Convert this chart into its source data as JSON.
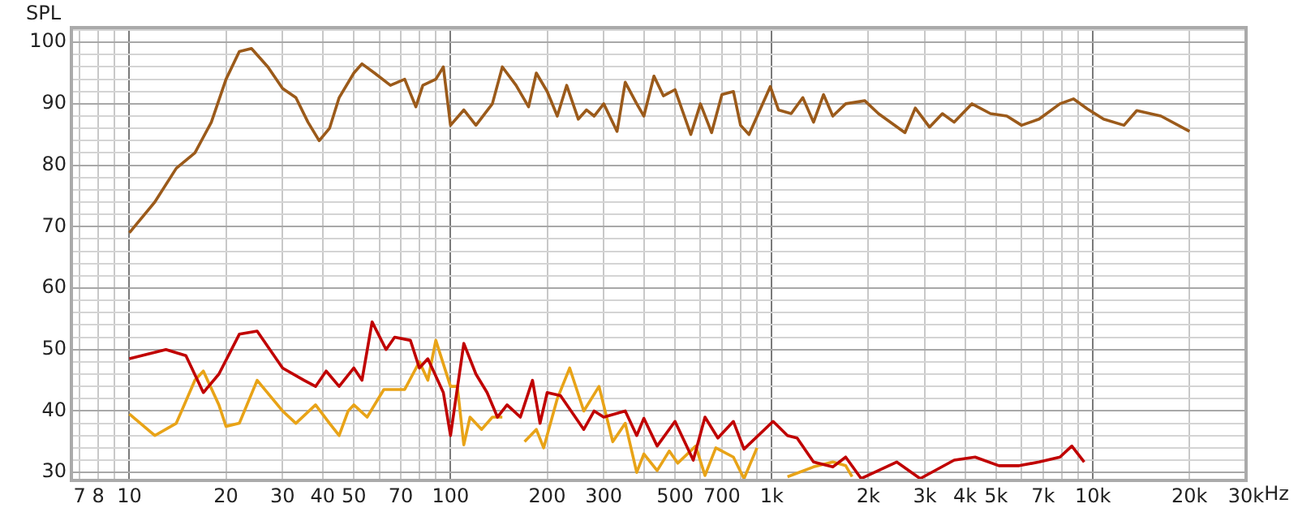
{
  "chart_data": {
    "type": "line",
    "ylabel": "SPL",
    "log": "x",
    "grid": true,
    "legend": false,
    "marker": "none",
    "line_style": "solid",
    "xlim": [
      6.6,
      30000
    ],
    "ylim": [
      28.7,
      102.4
    ],
    "xticks": [
      7,
      8,
      {
        "value": 9,
        "label": null
      },
      10,
      20,
      30,
      40,
      50,
      {
        "value": 60,
        "label": null
      },
      70,
      {
        "value": 80,
        "label": null
      },
      {
        "value": 90,
        "label": null
      },
      100,
      200,
      300,
      {
        "value": 400,
        "label": null
      },
      500,
      {
        "value": 600,
        "label": null
      },
      700,
      {
        "value": 800,
        "label": null
      },
      {
        "value": 900,
        "label": null
      },
      {
        "value": 1000,
        "label": "1k"
      },
      {
        "value": 2000,
        "label": "2k"
      },
      {
        "value": 3000,
        "label": "3k"
      },
      {
        "value": 4000,
        "label": "4k"
      },
      {
        "value": 5000,
        "label": "5k"
      },
      {
        "value": 6000,
        "label": null
      },
      {
        "value": 7000,
        "label": "7k"
      },
      {
        "value": 8000,
        "label": null
      },
      {
        "value": 9000,
        "label": null
      },
      {
        "value": 10000,
        "label": "10k"
      },
      {
        "value": 20000,
        "label": "20k"
      },
      {
        "value": 30000,
        "label": "30k"
      }
    ],
    "xlabel": "Hz",
    "yticks": [
      30,
      {
        "value": 32,
        "label": null
      },
      {
        "value": 34,
        "label": null
      },
      {
        "value": 36,
        "label": null
      },
      {
        "value": 38,
        "label": null
      },
      40,
      {
        "value": 42,
        "label": null
      },
      {
        "value": 44,
        "label": null
      },
      {
        "value": 46,
        "label": null
      },
      {
        "value": 48,
        "label": null
      },
      50,
      {
        "value": 52,
        "label": null
      },
      {
        "value": 54,
        "label": null
      },
      {
        "value": 56,
        "label": null
      },
      {
        "value": 58,
        "label": null
      },
      60,
      {
        "value": 62,
        "label": null
      },
      {
        "value": 64,
        "label": null
      },
      {
        "value": 66,
        "label": null
      },
      {
        "value": 68,
        "label": null
      },
      70,
      {
        "value": 72,
        "label": null
      },
      {
        "value": 74,
        "label": null
      },
      {
        "value": 76,
        "label": null
      },
      {
        "value": 78,
        "label": null
      },
      80,
      {
        "value": 82,
        "label": null
      },
      {
        "value": 84,
        "label": null
      },
      {
        "value": 86,
        "label": null
      },
      {
        "value": 88,
        "label": null
      },
      90,
      {
        "value": 92,
        "label": null
      },
      {
        "value": 94,
        "label": null
      },
      {
        "value": 96,
        "label": null
      },
      {
        "value": 98,
        "label": null
      },
      100,
      {
        "value": 102,
        "label": null
      }
    ],
    "series": [
      {
        "color": "#9b5a1a",
        "x": [
          10,
          12,
          14,
          16,
          18,
          20,
          22,
          24,
          27,
          30,
          33,
          36,
          39,
          42,
          45,
          50,
          53,
          58,
          65,
          72,
          78,
          82,
          90,
          95,
          100,
          110,
          120,
          135,
          145,
          160,
          175,
          185,
          200,
          215,
          230,
          250,
          265,
          280,
          300,
          330,
          350,
          380,
          400,
          430,
          460,
          500,
          560,
          600,
          650,
          700,
          760,
          800,
          850,
          990,
          1050,
          1150,
          1250,
          1350,
          1450,
          1550,
          1700,
          1950,
          2150,
          2600,
          2800,
          3100,
          3400,
          3700,
          4200,
          4800,
          5400,
          6000,
          6800,
          7900,
          8700,
          9600,
          10800,
          12500,
          13700,
          16300,
          20000
        ],
        "values": [
          69,
          74,
          79.5,
          82,
          87,
          94,
          98.5,
          99,
          96,
          92.5,
          91,
          87,
          84,
          86,
          91,
          95,
          96.5,
          95,
          93,
          94,
          89.5,
          93,
          94,
          96,
          86.5,
          89,
          86.5,
          90,
          96,
          93,
          89.5,
          95,
          92,
          88,
          93,
          87.5,
          89,
          88,
          90,
          85.5,
          93.5,
          90,
          88,
          94.5,
          91.3,
          92.3,
          85,
          90,
          85.3,
          91.5,
          92,
          86.5,
          85,
          92.8,
          89,
          88.4,
          91,
          87,
          91.5,
          88,
          90,
          90.5,
          88.4,
          85.3,
          89.3,
          86.2,
          88.4,
          87,
          90,
          88.4,
          88,
          86.5,
          87.5,
          90,
          90.8,
          89.2,
          87.5,
          86.5,
          88.9,
          88,
          85.5
        ]
      },
      {
        "color": "#c00000",
        "x": [
          10,
          13,
          15,
          17,
          19,
          22,
          25,
          30,
          35,
          38,
          41,
          45,
          50,
          53,
          57,
          63,
          67,
          75,
          80,
          85,
          95,
          100,
          110,
          120,
          130,
          140,
          150,
          165,
          180,
          190,
          200,
          220,
          260,
          280,
          300,
          350,
          380,
          400,
          440,
          500,
          570,
          620,
          680,
          760,
          820,
          1010,
          1120,
          1200,
          1350,
          1550,
          1700,
          1900,
          2450,
          2900,
          3700,
          4300,
          5100,
          5900,
          6800,
          7900,
          8600,
          9400
        ],
        "values": [
          48.5,
          50,
          49,
          43,
          46,
          52.5,
          53,
          47,
          45,
          44,
          46.5,
          44,
          47,
          45,
          54.5,
          50,
          52,
          51.5,
          47,
          48.5,
          43,
          36,
          51,
          46,
          43,
          39,
          41,
          39,
          45,
          38,
          43,
          42.5,
          37,
          40,
          39,
          40,
          36,
          38.8,
          34.3,
          38.3,
          32,
          39,
          35.6,
          38.3,
          33.8,
          38.3,
          36,
          35.6,
          31.7,
          30.9,
          32.5,
          29,
          31.7,
          29,
          32,
          32.5,
          31.1,
          31.1,
          31.7,
          32.5,
          34.3,
          31.7
        ]
      },
      {
        "color": "#e8a317",
        "x": [
          10,
          12,
          14,
          16,
          17,
          19,
          20,
          22,
          25,
          30,
          33,
          38,
          42,
          45,
          48,
          50,
          55,
          62,
          72,
          80,
          85,
          90,
          100,
          105,
          110,
          115,
          125,
          135,
          145,
          155,
          165,
          170,
          185,
          195,
          215,
          235,
          260,
          290,
          320,
          350,
          380,
          400,
          440,
          480,
          510,
          580,
          620,
          670,
          760,
          820,
          900,
          1000,
          1120,
          1350,
          1550,
          1700,
          1780
        ],
        "values": [
          39.5,
          36,
          38,
          45,
          46.5,
          41,
          37.5,
          38,
          45,
          40,
          38,
          41,
          38,
          36,
          40,
          41,
          39,
          43.5,
          43.5,
          48,
          45,
          51.5,
          44,
          44,
          34.5,
          39,
          37,
          39,
          39,
          null,
          null,
          35,
          37,
          34,
          42,
          47,
          40,
          44,
          35,
          38,
          30,
          33,
          30.3,
          33.5,
          31.5,
          34.3,
          29.5,
          34,
          32.5,
          29,
          34,
          null,
          29.3,
          30.9,
          31.7,
          31.1,
          29.3
        ]
      }
    ]
  }
}
